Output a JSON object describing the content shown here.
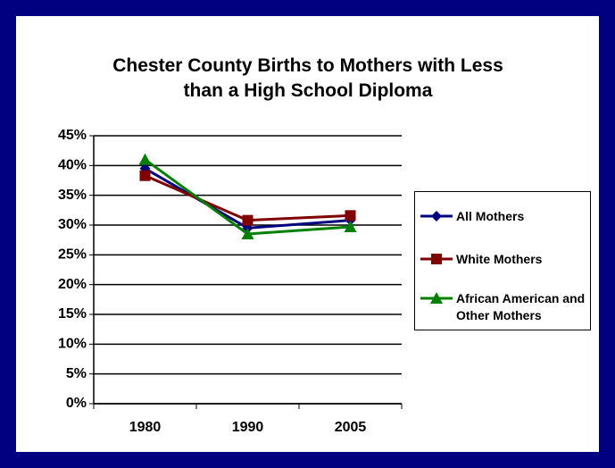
{
  "chart_data": {
    "type": "line",
    "title": "Chester County Births to Mothers with Less than a High School Diploma",
    "categories": [
      "1980",
      "1990",
      "2005"
    ],
    "series": [
      {
        "name": "All Mothers",
        "color": "#000080",
        "marker": "diamond",
        "values": [
          39.5,
          29.5,
          30.8
        ]
      },
      {
        "name": "White Mothers",
        "color": "#800000",
        "marker": "square",
        "values": [
          38.3,
          30.8,
          31.6
        ]
      },
      {
        "name": "African American and Other Mothers",
        "color": "#008000",
        "marker": "triangle",
        "values": [
          41.0,
          28.5,
          29.7
        ]
      }
    ],
    "ylim": [
      0,
      45
    ],
    "yticks": [
      {
        "value": 0,
        "label": "0%"
      },
      {
        "value": 5,
        "label": "5%"
      },
      {
        "value": 10,
        "label": "10%"
      },
      {
        "value": 15,
        "label": "15%"
      },
      {
        "value": 20,
        "label": "20%"
      },
      {
        "value": 25,
        "label": "25%"
      },
      {
        "value": 30,
        "label": "30%"
      },
      {
        "value": 35,
        "label": "35%"
      },
      {
        "value": 40,
        "label": "40%"
      },
      {
        "value": 45,
        "label": "45%"
      }
    ],
    "grid": true,
    "legend": "right"
  }
}
